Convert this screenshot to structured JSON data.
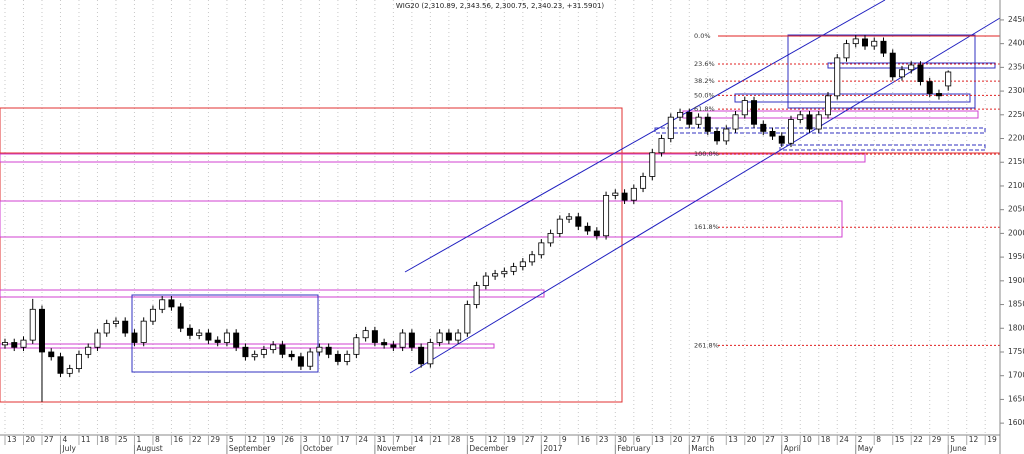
{
  "chart_data": {
    "type": "candlestick",
    "title": "WIG20 (2,310.89, 2,343.56, 2,300.75, 2,340.23, +31.5901)",
    "x": [
      0,
      1,
      2,
      3,
      4,
      5,
      6,
      7,
      8,
      9,
      10,
      11,
      12,
      13,
      14,
      15,
      16,
      17,
      18,
      19,
      20,
      21,
      22,
      23,
      24,
      25,
      26,
      27,
      28,
      29,
      30,
      31,
      32,
      33,
      34,
      35,
      36,
      37,
      38,
      39,
      40,
      41,
      42,
      43,
      44,
      45,
      46,
      47,
      48,
      49,
      50,
      51,
      52,
      53,
      54,
      55,
      56,
      57,
      58,
      59,
      60,
      61,
      62,
      63,
      64,
      65,
      66,
      67,
      68,
      69,
      70,
      71,
      72,
      73,
      74,
      75,
      76,
      77,
      78,
      79,
      80,
      81,
      82,
      83,
      84,
      85,
      86,
      87,
      88,
      89,
      90,
      91,
      92,
      93,
      94,
      95,
      96,
      97,
      98,
      99,
      100,
      101,
      102
    ],
    "open": [
      1765,
      1770,
      1760,
      1775,
      1840,
      1750,
      1740,
      1705,
      1715,
      1745,
      1760,
      1790,
      1810,
      1815,
      1790,
      1770,
      1815,
      1840,
      1860,
      1845,
      1800,
      1785,
      1790,
      1775,
      1770,
      1790,
      1760,
      1740,
      1745,
      1755,
      1765,
      1745,
      1740,
      1720,
      1750,
      1760,
      1745,
      1730,
      1745,
      1780,
      1795,
      1770,
      1765,
      1760,
      1790,
      1760,
      1725,
      1770,
      1790,
      1775,
      1790,
      1850,
      1890,
      1910,
      1915,
      1920,
      1930,
      1940,
      1955,
      1980,
      2000,
      2030,
      2035,
      2015,
      2005,
      1995,
      2080,
      2085,
      2070,
      2095,
      2120,
      2170,
      2200,
      2245,
      2255,
      2230,
      2245,
      2215,
      2195,
      2220,
      2250,
      2280,
      2230,
      2215,
      2205,
      2190,
      2240,
      2250,
      2220,
      2250,
      2290,
      2370,
      2400,
      2410,
      2395,
      2405,
      2380,
      2330,
      2345,
      2355,
      2320,
      2295,
      2310.89
    ],
    "high": [
      1778,
      1778,
      1783,
      1862,
      1848,
      1758,
      1748,
      1723,
      1753,
      1768,
      1798,
      1818,
      1823,
      1823,
      1798,
      1823,
      1848,
      1868,
      1868,
      1853,
      1808,
      1798,
      1798,
      1783,
      1798,
      1798,
      1768,
      1753,
      1763,
      1773,
      1773,
      1753,
      1748,
      1758,
      1768,
      1768,
      1753,
      1753,
      1788,
      1803,
      1803,
      1778,
      1773,
      1798,
      1798,
      1768,
      1778,
      1798,
      1798,
      1798,
      1858,
      1898,
      1918,
      1923,
      1928,
      1938,
      1948,
      1963,
      1988,
      2008,
      2038,
      2043,
      2043,
      2023,
      2013,
      2088,
      2093,
      2093,
      2103,
      2128,
      2178,
      2208,
      2253,
      2263,
      2263,
      2253,
      2253,
      2223,
      2228,
      2258,
      2288,
      2288,
      2238,
      2223,
      2213,
      2248,
      2258,
      2258,
      2258,
      2298,
      2378,
      2408,
      2418,
      2418,
      2413,
      2413,
      2388,
      2353,
      2363,
      2363,
      2328,
      2303,
      2343.56
    ],
    "low": [
      1757,
      1752,
      1752,
      1767,
      1645,
      1732,
      1697,
      1697,
      1707,
      1737,
      1752,
      1782,
      1802,
      1782,
      1762,
      1762,
      1807,
      1832,
      1837,
      1792,
      1777,
      1777,
      1767,
      1762,
      1762,
      1752,
      1732,
      1732,
      1737,
      1747,
      1737,
      1732,
      1712,
      1712,
      1742,
      1737,
      1722,
      1722,
      1737,
      1772,
      1762,
      1757,
      1752,
      1752,
      1752,
      1717,
      1717,
      1762,
      1767,
      1767,
      1782,
      1842,
      1882,
      1902,
      1907,
      1912,
      1922,
      1932,
      1947,
      1972,
      1992,
      2022,
      2007,
      1997,
      1987,
      1987,
      2072,
      2062,
      2062,
      2087,
      2112,
      2162,
      2192,
      2237,
      2222,
      2222,
      2207,
      2187,
      2187,
      2212,
      2242,
      2222,
      2207,
      2197,
      2182,
      2182,
      2232,
      2212,
      2212,
      2242,
      2282,
      2362,
      2392,
      2387,
      2387,
      2372,
      2322,
      2322,
      2337,
      2312,
      2287,
      2282,
      2300.75
    ],
    "close": [
      1770,
      1760,
      1775,
      1840,
      1750,
      1740,
      1705,
      1715,
      1745,
      1760,
      1790,
      1810,
      1815,
      1790,
      1770,
      1815,
      1840,
      1860,
      1845,
      1800,
      1785,
      1790,
      1775,
      1770,
      1790,
      1760,
      1740,
      1745,
      1755,
      1765,
      1745,
      1740,
      1720,
      1750,
      1760,
      1745,
      1730,
      1745,
      1780,
      1795,
      1770,
      1765,
      1760,
      1790,
      1760,
      1725,
      1770,
      1790,
      1775,
      1790,
      1850,
      1890,
      1910,
      1915,
      1920,
      1930,
      1940,
      1955,
      1980,
      2000,
      2030,
      2035,
      2015,
      2005,
      1995,
      2080,
      2085,
      2070,
      2095,
      2120,
      2170,
      2200,
      2245,
      2255,
      2230,
      2245,
      2215,
      2195,
      2220,
      2250,
      2280,
      2230,
      2215,
      2205,
      2190,
      2240,
      2250,
      2220,
      2250,
      2290,
      2370,
      2400,
      2410,
      2395,
      2405,
      2380,
      2330,
      2345,
      2355,
      2320,
      2295,
      2290,
      2340.23
    ],
    "up_color": "#ffffff",
    "down_color": "#000000",
    "xlim": [
      -0.54,
      107.6
    ],
    "ylim": [
      1575,
      2492
    ],
    "yticks": [
      1600,
      1650,
      1700,
      1750,
      1800,
      1850,
      1900,
      1950,
      2000,
      2050,
      2100,
      2150,
      2200,
      2250,
      2300,
      2350,
      2400,
      2450
    ],
    "xticks": [
      {
        "value": 0,
        "label": "13"
      },
      {
        "value": 2,
        "label": "20"
      },
      {
        "value": 4,
        "label": "27"
      },
      {
        "value": 6,
        "label": "4"
      },
      {
        "value": 8,
        "label": "11"
      },
      {
        "value": 10,
        "label": "18"
      },
      {
        "value": 12,
        "label": "25"
      },
      {
        "value": 14,
        "label": "1"
      },
      {
        "value": 16,
        "label": "8"
      },
      {
        "value": 18,
        "label": "16"
      },
      {
        "value": 20,
        "label": "22"
      },
      {
        "value": 22,
        "label": "29"
      },
      {
        "value": 24,
        "label": "5"
      },
      {
        "value": 26,
        "label": "12"
      },
      {
        "value": 28,
        "label": "19"
      },
      {
        "value": 30,
        "label": "26"
      },
      {
        "value": 32,
        "label": "3"
      },
      {
        "value": 34,
        "label": "10"
      },
      {
        "value": 36,
        "label": "17"
      },
      {
        "value": 38,
        "label": "24"
      },
      {
        "value": 40,
        "label": "31"
      },
      {
        "value": 42,
        "label": "7"
      },
      {
        "value": 44,
        "label": "14"
      },
      {
        "value": 46,
        "label": "21"
      },
      {
        "value": 48,
        "label": "28"
      },
      {
        "value": 50,
        "label": "5"
      },
      {
        "value": 52,
        "label": "12"
      },
      {
        "value": 54,
        "label": "19"
      },
      {
        "value": 56,
        "label": "27"
      },
      {
        "value": 58,
        "label": "2"
      },
      {
        "value": 60,
        "label": "9"
      },
      {
        "value": 62,
        "label": "16"
      },
      {
        "value": 64,
        "label": "23"
      },
      {
        "value": 66,
        "label": "30"
      },
      {
        "value": 68,
        "label": "6"
      },
      {
        "value": 70,
        "label": "13"
      },
      {
        "value": 72,
        "label": "20"
      },
      {
        "value": 74,
        "label": "27"
      },
      {
        "value": 76,
        "label": "6"
      },
      {
        "value": 78,
        "label": "13"
      },
      {
        "value": 80,
        "label": "20"
      },
      {
        "value": 82,
        "label": "27"
      },
      {
        "value": 84,
        "label": "3"
      },
      {
        "value": 86,
        "label": "10"
      },
      {
        "value": 88,
        "label": "18"
      },
      {
        "value": 90,
        "label": "24"
      },
      {
        "value": 92,
        "label": "2"
      },
      {
        "value": 94,
        "label": "8"
      },
      {
        "value": 96,
        "label": "15"
      },
      {
        "value": 98,
        "label": "22"
      },
      {
        "value": 100,
        "label": "29"
      },
      {
        "value": 102,
        "label": "5"
      },
      {
        "value": 104,
        "label": "12"
      },
      {
        "value": 106,
        "label": "19"
      }
    ],
    "month_labels": [
      {
        "value": 6,
        "label": "July"
      },
      {
        "value": 14,
        "label": "August"
      },
      {
        "value": 24,
        "label": "September"
      },
      {
        "value": 32,
        "label": "October"
      },
      {
        "value": 40,
        "label": "November"
      },
      {
        "value": 50,
        "label": "December"
      },
      {
        "value": 58,
        "label": "2017"
      },
      {
        "value": 66,
        "label": "February"
      },
      {
        "value": 74,
        "label": "March"
      },
      {
        "value": 84,
        "label": "April"
      },
      {
        "value": 92,
        "label": "May"
      },
      {
        "value": 102,
        "label": "June"
      }
    ],
    "fibonacci_levels": [
      {
        "label": "0.0%",
        "value": 2416
      },
      {
        "label": "23.6%",
        "value": 2357
      },
      {
        "label": "38.2%",
        "value": 2321
      },
      {
        "label": "50.0%",
        "value": 2291
      },
      {
        "label": "61.8%",
        "value": 2262
      },
      {
        "label": "100.0%",
        "value": 2167
      },
      {
        "label": "161.8%",
        "value": 2013
      },
      {
        "label": "261.8%",
        "value": 1764
      }
    ],
    "fib_color": "#e02020",
    "grid": true
  }
}
